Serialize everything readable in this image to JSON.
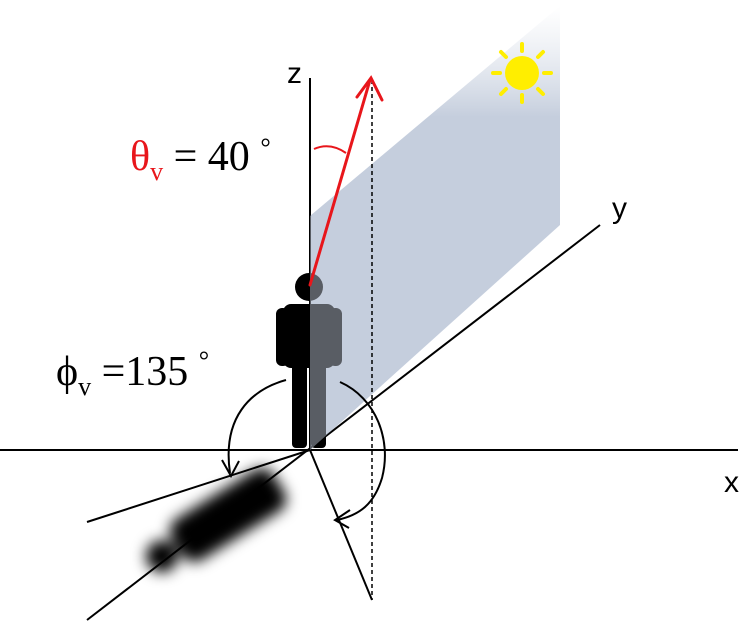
{
  "axes": {
    "x_label": "x",
    "y_label": "y",
    "z_label": "z"
  },
  "zenith_angle": {
    "symbol": "θ",
    "subscript": "v",
    "equals_value": " = 40 ",
    "unit": "°",
    "value": 40,
    "color": "#e8161b"
  },
  "azimuth_angle": {
    "symbol": "ϕ",
    "subscript": "v",
    "equals_value": " =135 ",
    "unit": "°",
    "value": 135,
    "color": "#000000"
  },
  "colors": {
    "view_vector": "#e8161b",
    "plane": "#c5cedd",
    "sun": "#ffee00",
    "person": "#000000"
  },
  "icons": [
    "sun-icon",
    "person-icon",
    "shadow-icon"
  ]
}
